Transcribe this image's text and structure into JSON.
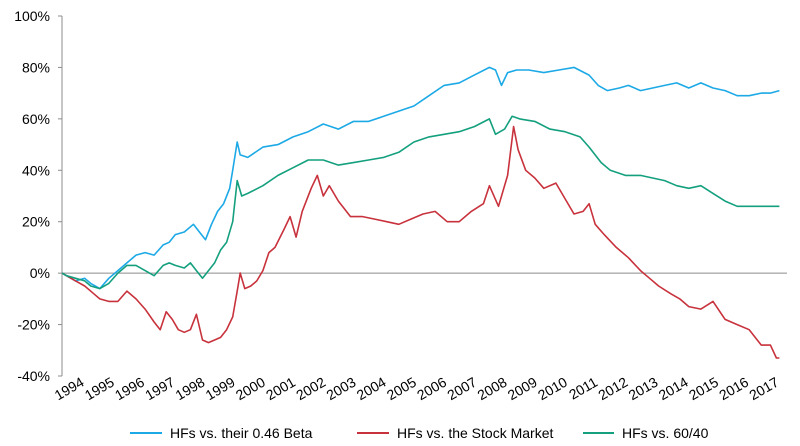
{
  "chart_data": {
    "type": "line",
    "x": [
      "1994",
      "1995",
      "1996",
      "1997",
      "1998",
      "1999",
      "2000",
      "2001",
      "2002",
      "2003",
      "2004",
      "2005",
      "2006",
      "2007",
      "2008",
      "2009",
      "2010",
      "2011",
      "2012",
      "2013",
      "2014",
      "2015",
      "2016",
      "2017"
    ],
    "y_ticks": [
      "100%",
      "80%",
      "60%",
      "40%",
      "20%",
      "0%",
      "-20%",
      "-40%"
    ],
    "ylim": [
      -40,
      100
    ],
    "grid": false,
    "legend_position": "bottom",
    "series": [
      {
        "name": "HFs vs. their 0.46 Beta",
        "color": "#1CA9E6",
        "points": [
          [
            1993.85,
            0
          ],
          [
            1994.0,
            -1
          ],
          [
            1994.3,
            -3
          ],
          [
            1994.6,
            -2
          ],
          [
            1994.8,
            -4
          ],
          [
            1995.1,
            -6
          ],
          [
            1995.4,
            -2
          ],
          [
            1995.7,
            1
          ],
          [
            1996.0,
            4
          ],
          [
            1996.3,
            7
          ],
          [
            1996.6,
            8
          ],
          [
            1996.9,
            7
          ],
          [
            1997.2,
            11
          ],
          [
            1997.4,
            12
          ],
          [
            1997.6,
            15
          ],
          [
            1997.9,
            16
          ],
          [
            1998.2,
            19
          ],
          [
            1998.4,
            16
          ],
          [
            1998.6,
            13
          ],
          [
            1998.8,
            19
          ],
          [
            1999.0,
            24
          ],
          [
            1999.2,
            27
          ],
          [
            1999.4,
            33
          ],
          [
            1999.5,
            40
          ],
          [
            1999.65,
            51
          ],
          [
            1999.75,
            46
          ],
          [
            2000.0,
            45
          ],
          [
            2000.5,
            49
          ],
          [
            2001.0,
            50
          ],
          [
            2001.5,
            53
          ],
          [
            2002.0,
            55
          ],
          [
            2002.5,
            58
          ],
          [
            2003.0,
            56
          ],
          [
            2003.5,
            59
          ],
          [
            2004.0,
            59
          ],
          [
            2004.5,
            61
          ],
          [
            2005.0,
            63
          ],
          [
            2005.5,
            65
          ],
          [
            2006.0,
            69
          ],
          [
            2006.5,
            73
          ],
          [
            2007.0,
            74
          ],
          [
            2007.5,
            77
          ],
          [
            2008.0,
            80
          ],
          [
            2008.2,
            79
          ],
          [
            2008.4,
            73
          ],
          [
            2008.6,
            78
          ],
          [
            2008.9,
            79
          ],
          [
            2009.3,
            79
          ],
          [
            2009.8,
            78
          ],
          [
            2010.3,
            79
          ],
          [
            2010.8,
            80
          ],
          [
            2011.3,
            77
          ],
          [
            2011.6,
            73
          ],
          [
            2011.9,
            71
          ],
          [
            2012.3,
            72
          ],
          [
            2012.6,
            73
          ],
          [
            2013.0,
            71
          ],
          [
            2013.4,
            72
          ],
          [
            2013.8,
            73
          ],
          [
            2014.2,
            74
          ],
          [
            2014.6,
            72
          ],
          [
            2015.0,
            74
          ],
          [
            2015.4,
            72
          ],
          [
            2015.8,
            71
          ],
          [
            2016.2,
            69
          ],
          [
            2016.6,
            69
          ],
          [
            2017.0,
            70
          ],
          [
            2017.3,
            70
          ],
          [
            2017.6,
            71
          ]
        ]
      },
      {
        "name": "HFs vs. the Stock Market",
        "color": "#C8323C",
        "points": [
          [
            1993.85,
            0
          ],
          [
            1994.0,
            -1
          ],
          [
            1994.3,
            -3
          ],
          [
            1994.6,
            -5
          ],
          [
            1994.9,
            -8
          ],
          [
            1995.1,
            -10
          ],
          [
            1995.4,
            -11
          ],
          [
            1995.7,
            -11
          ],
          [
            1996.0,
            -7
          ],
          [
            1996.3,
            -10
          ],
          [
            1996.6,
            -14
          ],
          [
            1996.9,
            -19
          ],
          [
            1997.1,
            -22
          ],
          [
            1997.3,
            -15
          ],
          [
            1997.5,
            -18
          ],
          [
            1997.7,
            -22
          ],
          [
            1997.9,
            -23
          ],
          [
            1998.1,
            -22
          ],
          [
            1998.3,
            -16
          ],
          [
            1998.5,
            -26
          ],
          [
            1998.7,
            -27
          ],
          [
            1998.9,
            -26
          ],
          [
            1999.1,
            -25
          ],
          [
            1999.3,
            -22
          ],
          [
            1999.5,
            -17
          ],
          [
            1999.65,
            -7
          ],
          [
            1999.75,
            0
          ],
          [
            1999.9,
            -6
          ],
          [
            2000.1,
            -5
          ],
          [
            2000.3,
            -3
          ],
          [
            2000.5,
            1
          ],
          [
            2000.7,
            8
          ],
          [
            2000.9,
            10
          ],
          [
            2001.2,
            17
          ],
          [
            2001.4,
            22
          ],
          [
            2001.6,
            14
          ],
          [
            2001.8,
            24
          ],
          [
            2002.1,
            33
          ],
          [
            2002.3,
            38
          ],
          [
            2002.5,
            30
          ],
          [
            2002.7,
            34
          ],
          [
            2003.0,
            28
          ],
          [
            2003.4,
            22
          ],
          [
            2003.8,
            22
          ],
          [
            2004.2,
            21
          ],
          [
            2004.6,
            20
          ],
          [
            2005.0,
            19
          ],
          [
            2005.4,
            21
          ],
          [
            2005.8,
            23
          ],
          [
            2006.2,
            24
          ],
          [
            2006.6,
            20
          ],
          [
            2007.0,
            20
          ],
          [
            2007.4,
            24
          ],
          [
            2007.8,
            27
          ],
          [
            2008.0,
            34
          ],
          [
            2008.3,
            26
          ],
          [
            2008.6,
            38
          ],
          [
            2008.8,
            57
          ],
          [
            2008.95,
            48
          ],
          [
            2009.2,
            40
          ],
          [
            2009.5,
            37
          ],
          [
            2009.8,
            33
          ],
          [
            2010.2,
            35
          ],
          [
            2010.5,
            29
          ],
          [
            2010.8,
            23
          ],
          [
            2011.1,
            24
          ],
          [
            2011.3,
            27
          ],
          [
            2011.5,
            19
          ],
          [
            2011.8,
            15
          ],
          [
            2012.2,
            10
          ],
          [
            2012.6,
            6
          ],
          [
            2013.0,
            1
          ],
          [
            2013.3,
            -2
          ],
          [
            2013.6,
            -5
          ],
          [
            2014.0,
            -8
          ],
          [
            2014.3,
            -10
          ],
          [
            2014.6,
            -13
          ],
          [
            2015.0,
            -14
          ],
          [
            2015.4,
            -11
          ],
          [
            2015.8,
            -18
          ],
          [
            2016.2,
            -20
          ],
          [
            2016.6,
            -22
          ],
          [
            2017.0,
            -28
          ],
          [
            2017.3,
            -28
          ],
          [
            2017.5,
            -33
          ],
          [
            2017.6,
            -33
          ]
        ]
      },
      {
        "name": "HFs vs. 60/40",
        "color": "#14A07E",
        "points": [
          [
            1993.85,
            0
          ],
          [
            1994.0,
            -1
          ],
          [
            1994.3,
            -2
          ],
          [
            1994.6,
            -3
          ],
          [
            1994.8,
            -5
          ],
          [
            1995.1,
            -6
          ],
          [
            1995.4,
            -4
          ],
          [
            1995.7,
            0
          ],
          [
            1996.0,
            3
          ],
          [
            1996.3,
            3
          ],
          [
            1996.6,
            1
          ],
          [
            1996.9,
            -1
          ],
          [
            1997.2,
            3
          ],
          [
            1997.4,
            4
          ],
          [
            1997.6,
            3
          ],
          [
            1997.9,
            2
          ],
          [
            1998.1,
            4
          ],
          [
            1998.3,
            1
          ],
          [
            1998.5,
            -2
          ],
          [
            1998.7,
            1
          ],
          [
            1998.9,
            4
          ],
          [
            1999.1,
            9
          ],
          [
            1999.3,
            12
          ],
          [
            1999.5,
            20
          ],
          [
            1999.65,
            36
          ],
          [
            1999.8,
            30
          ],
          [
            2000.0,
            31
          ],
          [
            2000.5,
            34
          ],
          [
            2001.0,
            38
          ],
          [
            2001.5,
            41
          ],
          [
            2002.0,
            44
          ],
          [
            2002.5,
            44
          ],
          [
            2003.0,
            42
          ],
          [
            2003.5,
            43
          ],
          [
            2004.0,
            44
          ],
          [
            2004.5,
            45
          ],
          [
            2005.0,
            47
          ],
          [
            2005.5,
            51
          ],
          [
            2006.0,
            53
          ],
          [
            2006.5,
            54
          ],
          [
            2007.0,
            55
          ],
          [
            2007.5,
            57
          ],
          [
            2008.0,
            60
          ],
          [
            2008.2,
            54
          ],
          [
            2008.5,
            56
          ],
          [
            2008.75,
            61
          ],
          [
            2009.0,
            60
          ],
          [
            2009.5,
            59
          ],
          [
            2010.0,
            56
          ],
          [
            2010.5,
            55
          ],
          [
            2011.0,
            53
          ],
          [
            2011.3,
            49
          ],
          [
            2011.7,
            43
          ],
          [
            2012.0,
            40
          ],
          [
            2012.5,
            38
          ],
          [
            2013.0,
            38
          ],
          [
            2013.4,
            37
          ],
          [
            2013.8,
            36
          ],
          [
            2014.2,
            34
          ],
          [
            2014.6,
            33
          ],
          [
            2015.0,
            34
          ],
          [
            2015.4,
            31
          ],
          [
            2015.8,
            28
          ],
          [
            2016.2,
            26
          ],
          [
            2016.6,
            26
          ],
          [
            2017.0,
            26
          ],
          [
            2017.3,
            26
          ],
          [
            2017.6,
            26
          ]
        ]
      }
    ]
  }
}
